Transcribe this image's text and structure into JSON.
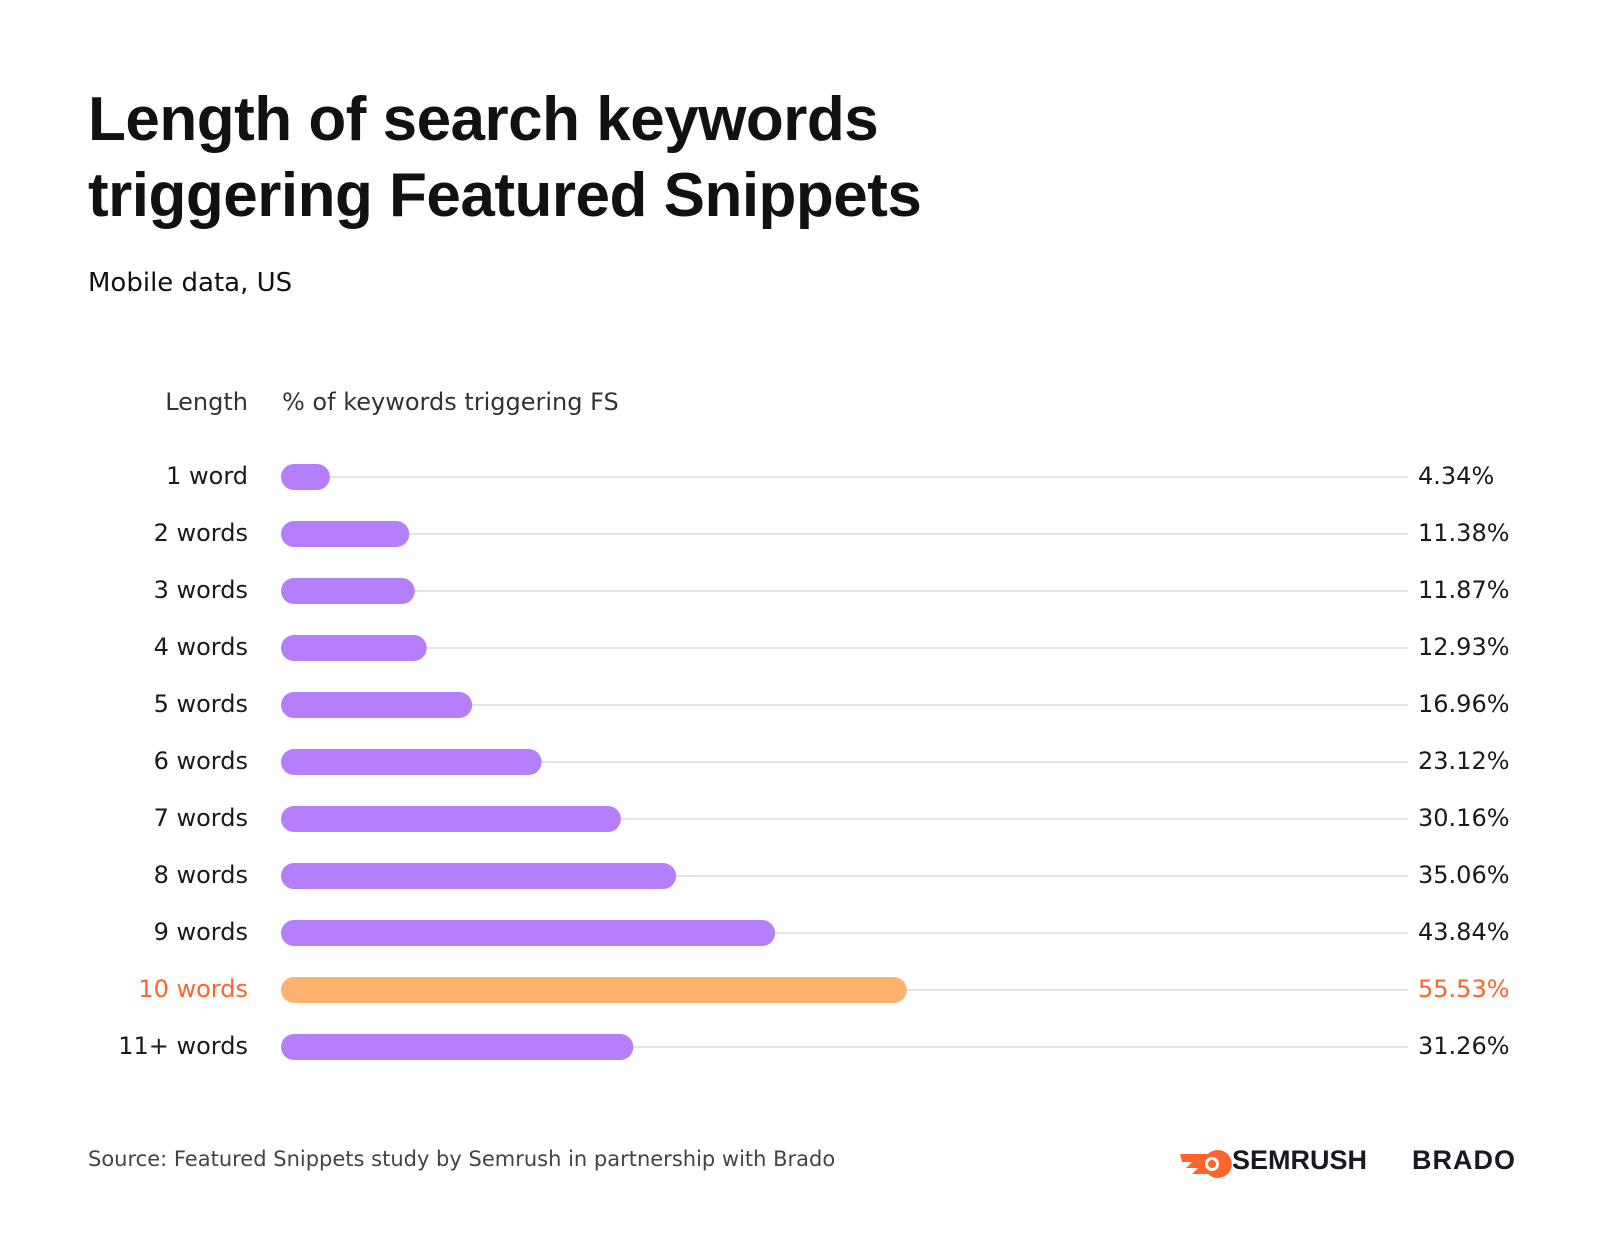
{
  "chart_data": {
    "type": "bar",
    "orientation": "horizontal",
    "title": "Length of search keywords triggering Featured Snippets",
    "subtitle": "Mobile data, US",
    "ylabel": "Length",
    "xlabel": "% of keywords triggering FS",
    "categories": [
      "1 word",
      "2 words",
      "3 words",
      "4 words",
      "5 words",
      "6 words",
      "7 words",
      "8 words",
      "9 words",
      "10 words",
      "11+ words"
    ],
    "values": [
      4.34,
      11.38,
      11.87,
      12.93,
      16.96,
      23.12,
      30.16,
      35.06,
      43.84,
      55.53,
      31.26
    ],
    "value_labels": [
      "4.34%",
      "11.38%",
      "11.87%",
      "12.93%",
      "16.96%",
      "23.12%",
      "30.16%",
      "35.06%",
      "43.84%",
      "55.53%",
      "31.26%"
    ],
    "colors": [
      "#b57efb",
      "#b57efb",
      "#b57efb",
      "#b57efb",
      "#b57efb",
      "#b57efb",
      "#b57efb",
      "#b57efb",
      "#b57efb",
      "#ffb26e",
      "#b57efb"
    ],
    "label_colors": [
      "#1a1a1a",
      "#1a1a1a",
      "#1a1a1a",
      "#1a1a1a",
      "#1a1a1a",
      "#1a1a1a",
      "#1a1a1a",
      "#1a1a1a",
      "#1a1a1a",
      "#ff642d",
      "#1a1a1a"
    ],
    "xlim": [
      0,
      100
    ],
    "source": "Source: Featured Snippets study by Semrush in partnership with Brado",
    "logos": [
      "SEMRUSH",
      "BRADO"
    ]
  }
}
